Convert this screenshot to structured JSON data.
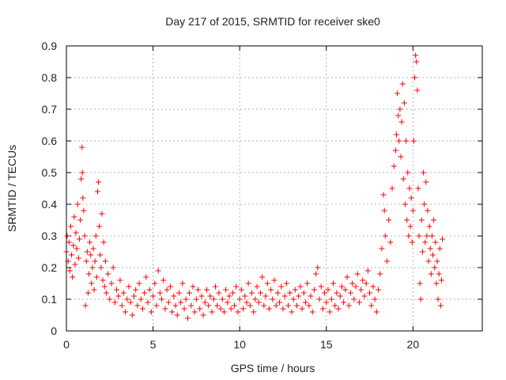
{
  "chart_data": {
    "type": "scatter",
    "title": "Day 217 of 2015, SRMTID for receiver ske0",
    "xlabel": "GPS time / hours",
    "ylabel": "SRMTID / TECUs",
    "xlim": [
      0,
      24
    ],
    "ylim": [
      0,
      0.9
    ],
    "grid": true,
    "marker": "plus",
    "color": "#ff0000",
    "xticks": [
      0,
      5,
      10,
      15,
      20
    ],
    "xtick_labels": [
      "0",
      "5",
      "10",
      "15",
      "20"
    ],
    "yticks": [
      0,
      0.1,
      0.2,
      0.3,
      0.4,
      0.5,
      0.6,
      0.7,
      0.8,
      0.9
    ],
    "ytick_labels": [
      "0",
      "0.1",
      "0.2",
      "0.3",
      "0.4",
      "0.5",
      "0.6",
      "0.7",
      "0.8",
      "0.9"
    ],
    "series": [
      {
        "name": "ske0",
        "points": [
          [
            0.0,
            0.25
          ],
          [
            0.05,
            0.3
          ],
          [
            0.1,
            0.22
          ],
          [
            0.15,
            0.28
          ],
          [
            0.2,
            0.19
          ],
          [
            0.25,
            0.33
          ],
          [
            0.3,
            0.24
          ],
          [
            0.35,
            0.17
          ],
          [
            0.4,
            0.27
          ],
          [
            0.45,
            0.36
          ],
          [
            0.5,
            0.21
          ],
          [
            0.55,
            0.31
          ],
          [
            0.6,
            0.26
          ],
          [
            0.65,
            0.4
          ],
          [
            0.7,
            0.23
          ],
          [
            0.75,
            0.29
          ],
          [
            0.8,
            0.35
          ],
          [
            0.85,
            0.48
          ],
          [
            0.9,
            0.58
          ],
          [
            0.92,
            0.5
          ],
          [
            0.95,
            0.42
          ],
          [
            1.0,
            0.38
          ],
          [
            1.05,
            0.3
          ],
          [
            1.1,
            0.08
          ],
          [
            1.15,
            0.22
          ],
          [
            1.2,
            0.25
          ],
          [
            1.25,
            0.12
          ],
          [
            1.3,
            0.18
          ],
          [
            1.35,
            0.28
          ],
          [
            1.4,
            0.24
          ],
          [
            1.45,
            0.15
          ],
          [
            1.5,
            0.2
          ],
          [
            1.55,
            0.26
          ],
          [
            1.6,
            0.13
          ],
          [
            1.65,
            0.22
          ],
          [
            1.7,
            0.3
          ],
          [
            1.75,
            0.17
          ],
          [
            1.8,
            0.44
          ],
          [
            1.85,
            0.47
          ],
          [
            1.9,
            0.33
          ],
          [
            1.95,
            0.24
          ],
          [
            2.0,
            0.2
          ],
          [
            2.05,
            0.37
          ],
          [
            2.1,
            0.16
          ],
          [
            2.15,
            0.28
          ],
          [
            2.2,
            0.14
          ],
          [
            2.25,
            0.22
          ],
          [
            2.3,
            0.12
          ],
          [
            2.4,
            0.18
          ],
          [
            2.5,
            0.1
          ],
          [
            2.6,
            0.15
          ],
          [
            2.7,
            0.2
          ],
          [
            2.8,
            0.09
          ],
          [
            2.9,
            0.13
          ],
          [
            3.0,
            0.11
          ],
          [
            3.1,
            0.16
          ],
          [
            3.2,
            0.08
          ],
          [
            3.3,
            0.12
          ],
          [
            3.4,
            0.06
          ],
          [
            3.5,
            0.1
          ],
          [
            3.6,
            0.14
          ],
          [
            3.7,
            0.09
          ],
          [
            3.8,
            0.05
          ],
          [
            3.9,
            0.11
          ],
          [
            4.0,
            0.13
          ],
          [
            4.1,
            0.08
          ],
          [
            4.2,
            0.15
          ],
          [
            4.3,
            0.1
          ],
          [
            4.4,
            0.07
          ],
          [
            4.5,
            0.12
          ],
          [
            4.6,
            0.17
          ],
          [
            4.7,
            0.09
          ],
          [
            4.8,
            0.13
          ],
          [
            4.9,
            0.06
          ],
          [
            5.0,
            0.11
          ],
          [
            5.1,
            0.15
          ],
          [
            5.2,
            0.08
          ],
          [
            5.3,
            0.19
          ],
          [
            5.4,
            0.12
          ],
          [
            5.5,
            0.1
          ],
          [
            5.6,
            0.16
          ],
          [
            5.7,
            0.07
          ],
          [
            5.8,
            0.13
          ],
          [
            5.9,
            0.09
          ],
          [
            6.0,
            0.14
          ],
          [
            6.1,
            0.06
          ],
          [
            6.2,
            0.11
          ],
          [
            6.3,
            0.08
          ],
          [
            6.4,
            0.05
          ],
          [
            6.5,
            0.12
          ],
          [
            6.6,
            0.09
          ],
          [
            6.7,
            0.15
          ],
          [
            6.8,
            0.07
          ],
          [
            6.9,
            0.1
          ],
          [
            7.0,
            0.04
          ],
          [
            7.1,
            0.12
          ],
          [
            7.2,
            0.08
          ],
          [
            7.3,
            0.14
          ],
          [
            7.4,
            0.06
          ],
          [
            7.5,
            0.1
          ],
          [
            7.6,
            0.13
          ],
          [
            7.7,
            0.07
          ],
          [
            7.8,
            0.11
          ],
          [
            7.9,
            0.05
          ],
          [
            8.0,
            0.09
          ],
          [
            8.1,
            0.13
          ],
          [
            8.2,
            0.08
          ],
          [
            8.3,
            0.11
          ],
          [
            8.4,
            0.06
          ],
          [
            8.5,
            0.1
          ],
          [
            8.6,
            0.14
          ],
          [
            8.7,
            0.08
          ],
          [
            8.8,
            0.12
          ],
          [
            8.9,
            0.07
          ],
          [
            9.0,
            0.1
          ],
          [
            9.1,
            0.06
          ],
          [
            9.2,
            0.13
          ],
          [
            9.3,
            0.09
          ],
          [
            9.4,
            0.11
          ],
          [
            9.5,
            0.07
          ],
          [
            9.6,
            0.12
          ],
          [
            9.7,
            0.08
          ],
          [
            9.8,
            0.14
          ],
          [
            9.9,
            0.06
          ],
          [
            10.0,
            0.1
          ],
          [
            10.1,
            0.13
          ],
          [
            10.2,
            0.07
          ],
          [
            10.3,
            0.11
          ],
          [
            10.4,
            0.09
          ],
          [
            10.5,
            0.15
          ],
          [
            10.6,
            0.08
          ],
          [
            10.7,
            0.12
          ],
          [
            10.8,
            0.06
          ],
          [
            10.9,
            0.1
          ],
          [
            11.0,
            0.14
          ],
          [
            11.1,
            0.09
          ],
          [
            11.2,
            0.12
          ],
          [
            11.3,
            0.17
          ],
          [
            11.4,
            0.08
          ],
          [
            11.5,
            0.11
          ],
          [
            11.6,
            0.15
          ],
          [
            11.7,
            0.07
          ],
          [
            11.8,
            0.13
          ],
          [
            11.9,
            0.1
          ],
          [
            12.0,
            0.16
          ],
          [
            12.1,
            0.08
          ],
          [
            12.2,
            0.12
          ],
          [
            12.3,
            0.09
          ],
          [
            12.4,
            0.14
          ],
          [
            12.5,
            0.07
          ],
          [
            12.6,
            0.11
          ],
          [
            12.7,
            0.15
          ],
          [
            12.8,
            0.08
          ],
          [
            12.9,
            0.12
          ],
          [
            13.0,
            0.06
          ],
          [
            13.1,
            0.1
          ],
          [
            13.2,
            0.13
          ],
          [
            13.3,
            0.08
          ],
          [
            13.4,
            0.11
          ],
          [
            13.5,
            0.14
          ],
          [
            13.6,
            0.07
          ],
          [
            13.7,
            0.12
          ],
          [
            13.8,
            0.09
          ],
          [
            13.9,
            0.15
          ],
          [
            14.0,
            0.08
          ],
          [
            14.1,
            0.11
          ],
          [
            14.2,
            0.06
          ],
          [
            14.3,
            0.13
          ],
          [
            14.4,
            0.18
          ],
          [
            14.5,
            0.2
          ],
          [
            14.6,
            0.1
          ],
          [
            14.7,
            0.14
          ],
          [
            14.8,
            0.07
          ],
          [
            14.9,
            0.12
          ],
          [
            15.0,
            0.09
          ],
          [
            15.1,
            0.13
          ],
          [
            15.2,
            0.06
          ],
          [
            15.3,
            0.1
          ],
          [
            15.4,
            0.15
          ],
          [
            15.5,
            0.08
          ],
          [
            15.6,
            0.12
          ],
          [
            15.7,
            0.07
          ],
          [
            15.8,
            0.11
          ],
          [
            15.9,
            0.14
          ],
          [
            16.0,
            0.09
          ],
          [
            16.1,
            0.13
          ],
          [
            16.2,
            0.17
          ],
          [
            16.3,
            0.08
          ],
          [
            16.4,
            0.12
          ],
          [
            16.5,
            0.15
          ],
          [
            16.6,
            0.1
          ],
          [
            16.7,
            0.14
          ],
          [
            16.8,
            0.18
          ],
          [
            16.9,
            0.09
          ],
          [
            17.0,
            0.13
          ],
          [
            17.1,
            0.16
          ],
          [
            17.2,
            0.11
          ],
          [
            17.3,
            0.15
          ],
          [
            17.4,
            0.19
          ],
          [
            17.5,
            0.12
          ],
          [
            17.6,
            0.08
          ],
          [
            17.7,
            0.14
          ],
          [
            17.8,
            0.1
          ],
          [
            17.9,
            0.06
          ],
          [
            18.0,
            0.13
          ],
          [
            18.1,
            0.18
          ],
          [
            18.2,
            0.26
          ],
          [
            18.3,
            0.43
          ],
          [
            18.35,
            0.38
          ],
          [
            18.4,
            0.3
          ],
          [
            18.5,
            0.22
          ],
          [
            18.6,
            0.35
          ],
          [
            18.7,
            0.28
          ],
          [
            18.8,
            0.45
          ],
          [
            18.9,
            0.52
          ],
          [
            19.0,
            0.57
          ],
          [
            19.05,
            0.62
          ],
          [
            19.1,
            0.75
          ],
          [
            19.15,
            0.68
          ],
          [
            19.2,
            0.6
          ],
          [
            19.25,
            0.7
          ],
          [
            19.3,
            0.55
          ],
          [
            19.35,
            0.66
          ],
          [
            19.4,
            0.78
          ],
          [
            19.45,
            0.48
          ],
          [
            19.5,
            0.72
          ],
          [
            19.55,
            0.4
          ],
          [
            19.6,
            0.6
          ],
          [
            19.65,
            0.35
          ],
          [
            19.7,
            0.5
          ],
          [
            19.75,
            0.3
          ],
          [
            19.8,
            0.45
          ],
          [
            19.85,
            0.33
          ],
          [
            19.9,
            0.42
          ],
          [
            19.95,
            0.28
          ],
          [
            20.0,
            0.38
          ],
          [
            20.05,
            0.6
          ],
          [
            20.1,
            0.8
          ],
          [
            20.15,
            0.87
          ],
          [
            20.2,
            0.85
          ],
          [
            20.25,
            0.76
          ],
          [
            20.3,
            0.45
          ],
          [
            20.35,
            0.3
          ],
          [
            20.4,
            0.15
          ],
          [
            20.45,
            0.1
          ],
          [
            20.5,
            0.35
          ],
          [
            20.55,
            0.25
          ],
          [
            20.6,
            0.5
          ],
          [
            20.65,
            0.4
          ],
          [
            20.7,
            0.28
          ],
          [
            20.75,
            0.47
          ],
          [
            20.8,
            0.3
          ],
          [
            20.85,
            0.38
          ],
          [
            20.9,
            0.22
          ],
          [
            20.95,
            0.33
          ],
          [
            21.0,
            0.26
          ],
          [
            21.05,
            0.18
          ],
          [
            21.1,
            0.3
          ],
          [
            21.15,
            0.24
          ],
          [
            21.2,
            0.35
          ],
          [
            21.25,
            0.2
          ],
          [
            21.3,
            0.28
          ],
          [
            21.35,
            0.15
          ],
          [
            21.4,
            0.22
          ],
          [
            21.45,
            0.1
          ],
          [
            21.5,
            0.18
          ],
          [
            21.55,
            0.26
          ],
          [
            21.6,
            0.08
          ],
          [
            21.65,
            0.16
          ],
          [
            21.7,
            0.29
          ]
        ]
      }
    ]
  }
}
